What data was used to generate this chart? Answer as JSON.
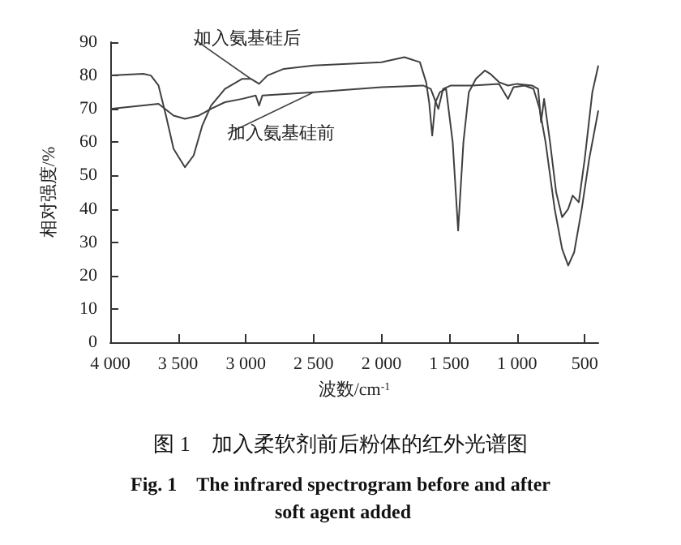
{
  "chart_data": {
    "type": "line",
    "title": "图 1　加入柔软剂前后粉体的红外光谱图",
    "subtitle": "Fig. 1　The infrared spectrogram before and after soft agent added",
    "xlabel": "波数/cm$^{-1}$",
    "ylabel": "相对强度/%",
    "xlim": [
      4000,
      400
    ],
    "ylim": [
      0,
      90
    ],
    "xticks": [
      {
        "value": 4000,
        "label": "4 000"
      },
      {
        "value": 3500,
        "label": "3 500"
      },
      {
        "value": 3000,
        "label": "3 000"
      },
      {
        "value": 2500,
        "label": "2 500"
      },
      {
        "value": 2000,
        "label": "2 000"
      },
      {
        "value": 1500,
        "label": "1 500"
      },
      {
        "value": 1000,
        "label": "1 000"
      },
      500
    ],
    "yticks": [
      0,
      10,
      20,
      30,
      40,
      50,
      60,
      70,
      80,
      90
    ],
    "grid": false,
    "legend": false,
    "marker": "none",
    "line_style": "solid",
    "series": [
      {
        "name": "加入氨基硅后",
        "color": "#404040",
        "x": [
          4000,
          3756,
          3700,
          3644,
          3589,
          3533,
          3449,
          3385,
          3321,
          3256,
          3154,
          3026,
          2963,
          2902,
          2841,
          2720,
          2500,
          2000,
          1830,
          1716,
          1670,
          1648,
          1625,
          1602,
          1568,
          1523,
          1474,
          1434,
          1395,
          1355,
          1303,
          1237,
          1197,
          1132,
          1066,
          1000,
          889,
          844,
          822,
          800,
          756,
          711,
          667,
          622,
          589,
          544,
          500,
          444,
          400
        ],
        "values": [
          80,
          80.5,
          80,
          77,
          68,
          58,
          52.5,
          56,
          65,
          71,
          76,
          79,
          79,
          77.5,
          80,
          82,
          83,
          84,
          85.5,
          84,
          78,
          72,
          62,
          72,
          75,
          76,
          60,
          33.5,
          60,
          75,
          79,
          81.5,
          80.5,
          78,
          77,
          77.5,
          77,
          76,
          66,
          73,
          60,
          45,
          37.5,
          40,
          44,
          42,
          55,
          75,
          83
        ]
      },
      {
        "name": "加入氨基硅前",
        "color": "#404040",
        "x": [
          4000,
          3756,
          3644,
          3533,
          3449,
          3346,
          3256,
          3154,
          3026,
          2927,
          2902,
          2878,
          2500,
          2000,
          1693,
          1636,
          1580,
          1545,
          1487,
          1329,
          1132,
          1066,
          1026,
          944,
          878,
          833,
          789,
          722,
          667,
          622,
          578,
          522,
          467,
          400
        ],
        "values": [
          70,
          71,
          71.5,
          68,
          67,
          68,
          70,
          72,
          73,
          74,
          71,
          74,
          75,
          76.5,
          77,
          76,
          70,
          76,
          77,
          77,
          77.5,
          73,
          76.5,
          77,
          76,
          70,
          60,
          40,
          28,
          23,
          27,
          40,
          55,
          69.5
        ]
      }
    ]
  }
}
